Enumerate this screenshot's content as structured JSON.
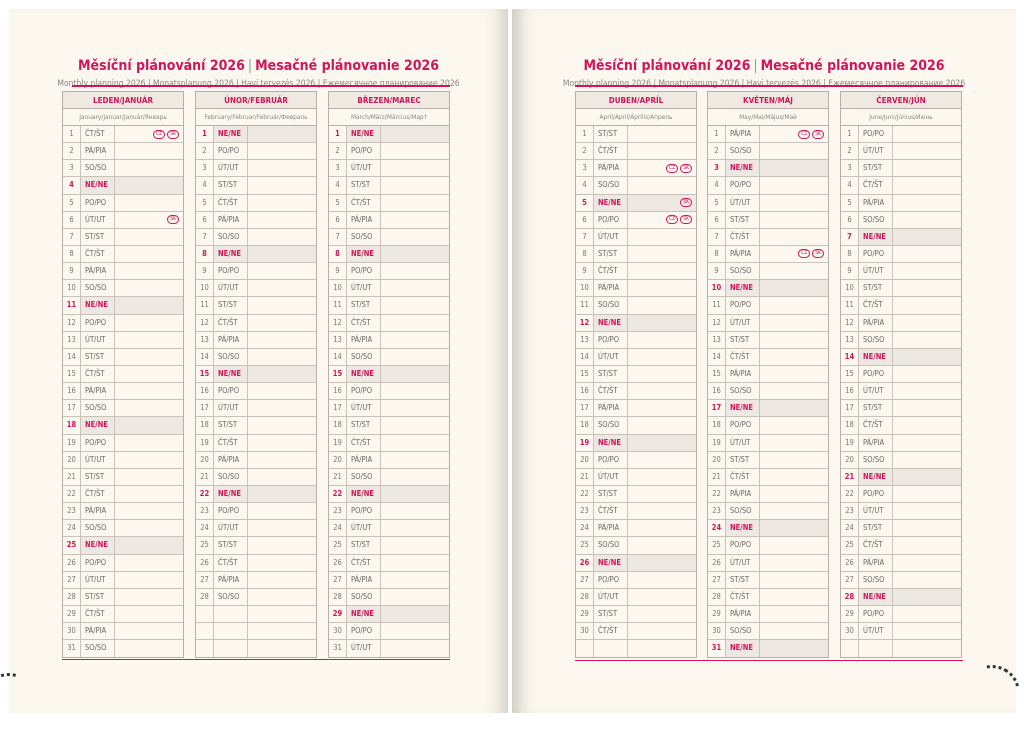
{
  "header": {
    "title_cz": "Měsíční plánování 2026",
    "title_sk": "Mesačné plánovanie 2026",
    "separator": "|",
    "subtitle": "Monthly planning 2026 | Monatsplanung 2026 | Havi tervezés 2026 | Ежемесячное планирование 2026"
  },
  "day_labels": [
    "PO/PO",
    "ÚT/UT",
    "ST/ST",
    "ČT/ŠT",
    "PÁ/PIA",
    "SO/SO",
    "NE/NE"
  ],
  "colors": {
    "accent": "#d2145a",
    "page": "#fcf8ef",
    "sunday_fill": "#ede8e1"
  },
  "months": [
    {
      "name": "LEDEN/JANUÁR",
      "sub": "January/Januar/Január/Январь",
      "start": 3,
      "days": 31,
      "holidays": {
        "1": [
          "CZ",
          "SK"
        ],
        "6": [
          "SK"
        ]
      }
    },
    {
      "name": "ÚNOR/FEBRUÁR",
      "sub": "February/Februar/Február/Февраль",
      "start": 6,
      "days": 28,
      "holidays": {}
    },
    {
      "name": "BŘEZEN/MAREC",
      "sub": "March/März/Március/Март",
      "start": 6,
      "days": 31,
      "holidays": {}
    },
    {
      "name": "DUBEN/APRÍL",
      "sub": "April/April/Április/Апрель",
      "start": 2,
      "days": 30,
      "holidays": {
        "3": [
          "CZ",
          "SK"
        ],
        "5": [
          "SK"
        ],
        "6": [
          "CZ",
          "SK"
        ]
      }
    },
    {
      "name": "KVĚTEN/MÁJ",
      "sub": "May/Mai/Május/Май",
      "start": 4,
      "days": 31,
      "holidays": {
        "1": [
          "CZ",
          "SK"
        ],
        "8": [
          "CZ",
          "SK"
        ]
      }
    },
    {
      "name": "ČERVEN/JÚN",
      "sub": "June/Juni/Június/Июнь",
      "start": 0,
      "days": 30,
      "holidays": {}
    }
  ]
}
